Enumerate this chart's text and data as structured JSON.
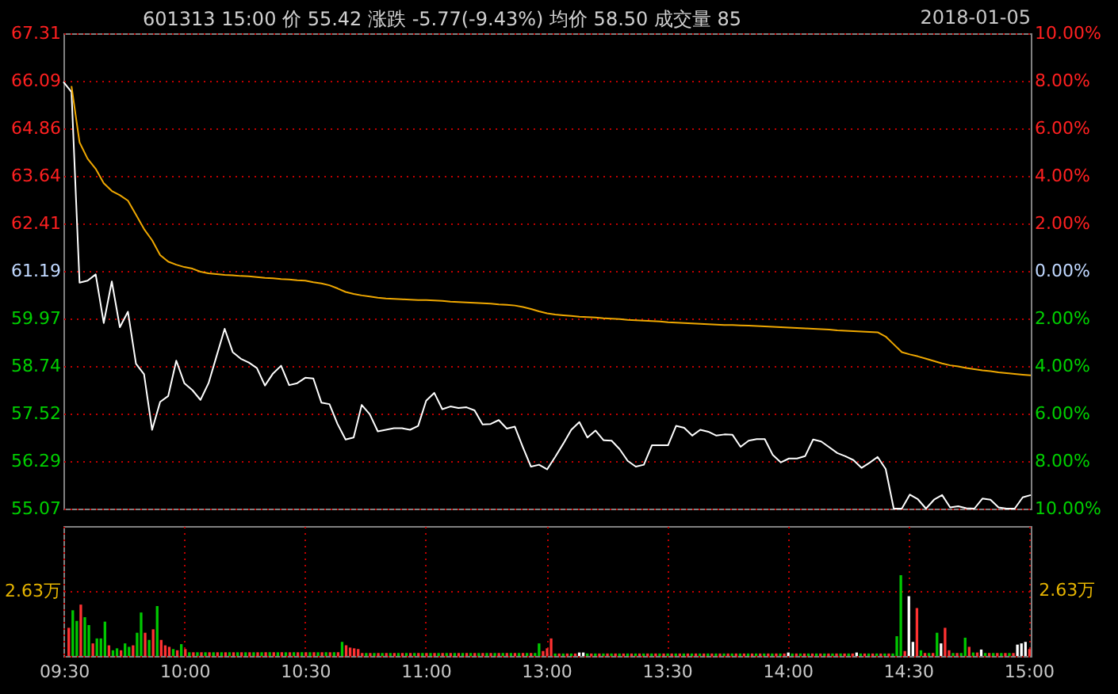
{
  "chart_data": [
    {
      "type": "line",
      "title": "601313 15:00  价 55.42  涨跌 -5.77(-9.43%)  均价 58.50  成交量 85",
      "annotations": [
        "2018-01-05"
      ],
      "categories": [
        null,
        null,
        null,
        null,
        null,
        null,
        null,
        null,
        null,
        null,
        null,
        null,
        null,
        null,
        null,
        null,
        null,
        null,
        null,
        null,
        null,
        null,
        null,
        null,
        null,
        null,
        null,
        null,
        null,
        null,
        null,
        null,
        null,
        null,
        null,
        null,
        null,
        null,
        null,
        null,
        null,
        null,
        null,
        null,
        null,
        null,
        null,
        null,
        null,
        null,
        null,
        null,
        null,
        null,
        null,
        null,
        null,
        null,
        null,
        null,
        null,
        null,
        null,
        null,
        null,
        null,
        null,
        null,
        null,
        null,
        null,
        null,
        null,
        null,
        null,
        null,
        null,
        null,
        null,
        null,
        null,
        null,
        null,
        null,
        null,
        null,
        null,
        null,
        null,
        null,
        null,
        null,
        null,
        null,
        null,
        null,
        null,
        null,
        null,
        null,
        null,
        null,
        null,
        null,
        null,
        null,
        null,
        null,
        null,
        null,
        null,
        null,
        null,
        null,
        null,
        null,
        null,
        null,
        null,
        null,
        null
      ],
      "ylim": [
        55.07,
        67.31
      ],
      "yticks": [
        55.07,
        56.29,
        57.52,
        58.74,
        59.97,
        61.19,
        62.41,
        63.64,
        64.86,
        66.09,
        67.31
      ],
      "y2lim": [
        -10,
        10
      ],
      "y2ticks": [
        {
          "value": -10,
          "label": "10.00%"
        },
        {
          "value": -8,
          "label": "8.00%"
        },
        {
          "value": -6,
          "label": "6.00%"
        },
        {
          "value": -4,
          "label": "4.00%"
        },
        {
          "value": -2,
          "label": "2.00%"
        },
        {
          "value": 0,
          "label": "0.00%"
        },
        {
          "value": 2,
          "label": "2.00%"
        },
        {
          "value": 4,
          "label": "4.00%"
        },
        {
          "value": 6,
          "label": "6.00%"
        },
        {
          "value": 8,
          "label": "8.00%"
        },
        {
          "value": 10,
          "label": "10.00%"
        }
      ],
      "grid": "y",
      "tick_labels": "y",
      "series": [
        {
          "color": "#ffffff",
          "values": [
            66.06,
            65.8,
            60.89,
            60.94,
            61.1,
            59.85,
            60.92,
            59.74,
            60.14,
            58.8,
            58.53,
            57.1,
            57.82,
            57.97,
            58.88,
            58.3,
            58.12,
            57.87,
            58.3,
            59.0,
            59.7,
            59.1,
            58.93,
            58.83,
            58.69,
            58.24,
            58.55,
            58.75,
            58.25,
            58.3,
            58.44,
            58.42,
            57.8,
            57.76,
            57.25,
            56.85,
            56.9,
            57.74,
            57.5,
            57.06,
            57.1,
            57.14,
            57.14,
            57.1,
            57.2,
            57.85,
            58.05,
            57.63,
            57.7,
            57.66,
            57.68,
            57.6,
            57.24,
            57.25,
            57.35,
            57.13,
            57.18,
            56.65,
            56.15,
            56.2,
            56.08,
            56.4,
            56.74,
            57.1,
            57.3,
            56.9,
            57.08,
            56.83,
            56.82,
            56.6,
            56.3,
            56.15,
            56.2,
            56.7,
            56.7,
            56.7,
            57.2,
            57.15,
            56.95,
            57.1,
            57.05,
            56.95,
            56.98,
            56.97,
            56.66,
            56.82,
            56.86,
            56.86,
            56.45,
            56.26,
            56.36,
            56.36,
            56.42,
            56.85,
            56.8,
            56.65,
            56.5,
            56.42,
            56.32,
            56.12,
            56.25,
            56.4,
            56.09,
            55.07,
            55.07,
            55.43,
            55.31,
            55.07,
            55.3,
            55.42,
            55.1,
            55.13,
            55.08,
            55.07,
            55.33,
            55.3,
            55.1,
            55.07,
            55.07,
            55.36,
            55.42
          ]
        },
        {
          "color": "#f0a800",
          "values": [
            null,
            65.95,
            64.5,
            64.08,
            63.82,
            63.45,
            63.25,
            63.14,
            63.0,
            62.64,
            62.27,
            61.98,
            61.6,
            61.43,
            61.35,
            61.29,
            61.25,
            61.17,
            61.13,
            61.11,
            61.09,
            61.08,
            61.06,
            61.05,
            61.03,
            61.01,
            61.0,
            60.98,
            60.97,
            60.95,
            60.94,
            60.9,
            60.87,
            60.82,
            60.74,
            60.65,
            60.6,
            60.56,
            60.53,
            60.5,
            60.48,
            60.47,
            60.46,
            60.45,
            60.44,
            60.44,
            60.43,
            60.42,
            60.4,
            60.39,
            60.38,
            60.37,
            60.36,
            60.35,
            60.33,
            60.32,
            60.3,
            60.26,
            60.21,
            60.15,
            60.1,
            60.07,
            60.05,
            60.03,
            60.01,
            60.0,
            59.99,
            59.97,
            59.96,
            59.95,
            59.93,
            59.92,
            59.91,
            59.9,
            59.89,
            59.87,
            59.86,
            59.85,
            59.84,
            59.83,
            59.82,
            59.81,
            59.8,
            59.8,
            59.79,
            59.78,
            59.77,
            59.76,
            59.75,
            59.74,
            59.73,
            59.72,
            59.71,
            59.7,
            59.69,
            59.68,
            59.66,
            59.65,
            59.64,
            59.63,
            59.62,
            59.61,
            59.5,
            59.3,
            59.1,
            59.04,
            58.99,
            58.93,
            58.87,
            58.81,
            58.76,
            58.73,
            58.69,
            58.66,
            58.63,
            58.61,
            58.58,
            58.56,
            58.54,
            58.52,
            58.5
          ]
        }
      ]
    },
    {
      "type": "bar",
      "categories": [
        "09:30",
        null,
        null,
        null,
        null,
        null,
        null,
        null,
        null,
        null,
        null,
        null,
        null,
        null,
        null,
        null,
        null,
        null,
        null,
        null,
        null,
        null,
        null,
        null,
        null,
        null,
        null,
        null,
        null,
        null,
        "10:00",
        null,
        null,
        null,
        null,
        null,
        null,
        null,
        null,
        null,
        null,
        null,
        null,
        null,
        null,
        null,
        null,
        null,
        null,
        null,
        null,
        null,
        null,
        null,
        null,
        null,
        null,
        null,
        null,
        null,
        "10:30",
        null,
        null,
        null,
        null,
        null,
        null,
        null,
        null,
        null,
        null,
        null,
        null,
        null,
        null,
        null,
        null,
        null,
        null,
        null,
        null,
        null,
        null,
        null,
        null,
        null,
        null,
        null,
        null,
        null,
        "11:00",
        null,
        null,
        null,
        null,
        null,
        null,
        null,
        null,
        null,
        null,
        null,
        null,
        null,
        null,
        null,
        null,
        null,
        null,
        null,
        null,
        null,
        null,
        null,
        null,
        null,
        null,
        null,
        null,
        null,
        "13:00",
        null,
        null,
        null,
        null,
        null,
        null,
        null,
        null,
        null,
        null,
        null,
        null,
        null,
        null,
        null,
        null,
        null,
        null,
        null,
        null,
        null,
        null,
        null,
        null,
        null,
        null,
        null,
        null,
        null,
        "13:30",
        null,
        null,
        null,
        null,
        null,
        null,
        null,
        null,
        null,
        null,
        null,
        null,
        null,
        null,
        null,
        null,
        null,
        null,
        null,
        null,
        null,
        null,
        null,
        null,
        null,
        null,
        null,
        null,
        null,
        "14:00",
        null,
        null,
        null,
        null,
        null,
        null,
        null,
        null,
        null,
        null,
        null,
        null,
        null,
        null,
        null,
        null,
        null,
        null,
        null,
        null,
        null,
        null,
        null,
        null,
        null,
        null,
        null,
        null,
        null,
        "14:30",
        null,
        null,
        null,
        null,
        null,
        null,
        null,
        null,
        null,
        null,
        null,
        null,
        null,
        null,
        null,
        null,
        null,
        null,
        null,
        null,
        null,
        null,
        null,
        null,
        null,
        null,
        null,
        null,
        null,
        "15:00"
      ],
      "ylim": [
        0,
        5.26
      ],
      "yticks": [
        {
          "value": 0,
          "label": null
        },
        {
          "value": 2.63,
          "label": "2.63万"
        }
      ],
      "annotations": [
        "2.63万"
      ],
      "grid": true,
      "values": [
        null,
        1.14,
        1.85,
        1.42,
        2.08,
        1.57,
        1.25,
        0.51,
        0.71,
        0.71,
        1.39,
        0.43,
        0.23,
        0.31,
        0.23,
        0.51,
        0.37,
        0.43,
        0.94,
        1.76,
        0.94,
        0.65,
        1.08,
        2.02,
        0.65,
        0.43,
        0.37,
        0.28,
        0.23,
        0.48,
        0.28,
        0.15,
        0.15,
        0.15,
        0.15,
        0.15,
        0.15,
        0.15,
        0.15,
        0.15,
        0.15,
        0.15,
        0.15,
        0.15,
        0.15,
        0.15,
        0.15,
        0.15,
        0.15,
        0.15,
        0.15,
        0.15,
        0.15,
        0.15,
        0.15,
        0.15,
        0.15,
        0.15,
        0.15,
        0.15,
        0.15,
        0.15,
        0.15,
        0.15,
        0.15,
        0.15,
        0.15,
        0.15,
        0.15,
        0.57,
        0.43,
        0.34,
        0.31,
        0.28,
        0.12,
        0.12,
        0.12,
        0.12,
        0.12,
        0.12,
        0.12,
        0.12,
        0.12,
        0.12,
        0.12,
        0.12,
        0.12,
        0.12,
        0.12,
        0.12,
        0.12,
        0.12,
        0.12,
        0.12,
        0.12,
        0.12,
        0.12,
        0.12,
        0.12,
        0.12,
        0.12,
        0.12,
        0.12,
        0.12,
        0.12,
        0.12,
        0.12,
        0.12,
        0.12,
        0.12,
        0.12,
        0.12,
        0.12,
        0.12,
        0.12,
        0.12,
        0.12,
        0.12,
        0.51,
        0.2,
        0.31,
        0.71,
        0.1,
        0.1,
        0.1,
        0.1,
        0.1,
        0.1,
        0.14,
        0.14,
        0.1,
        0.1,
        0.1,
        0.1,
        0.1,
        0.1,
        0.1,
        0.1,
        0.1,
        0.1,
        0.1,
        0.1,
        0.1,
        0.1,
        0.1,
        0.1,
        0.1,
        0.1,
        0.1,
        0.1,
        0.1,
        0.1,
        0.1,
        0.1,
        0.1,
        0.1,
        0.1,
        0.1,
        0.1,
        0.1,
        0.1,
        0.1,
        0.1,
        0.1,
        0.1,
        0.1,
        0.1,
        0.1,
        0.1,
        0.1,
        0.1,
        0.1,
        0.1,
        0.1,
        0.1,
        0.1,
        0.1,
        0.1,
        0.1,
        0.1,
        0.14,
        0.1,
        0.1,
        0.1,
        0.1,
        0.1,
        0.1,
        0.1,
        0.1,
        0.1,
        0.1,
        0.1,
        0.1,
        0.1,
        0.1,
        0.1,
        0.1,
        0.14,
        0.1,
        0.1,
        0.1,
        0.1,
        0.1,
        0.1,
        0.1,
        0.1,
        0.1,
        0.8,
        3.27,
        0.2,
        2.42,
        0.57,
        1.94,
        0.23,
        0.12,
        0.12,
        0.12,
        0.94,
        0.51,
        1.14,
        0.23,
        0.12,
        0.12,
        0.12,
        0.74,
        0.37,
        0.14,
        0.14,
        0.26,
        0.12,
        0.12,
        0.12,
        0.12,
        0.12,
        0.12,
        0.12,
        0.12,
        0.46,
        0.51,
        0.57,
        0.28
      ],
      "colors": [
        "#ff3232",
        "#ff3232",
        "#00c800",
        "#00c800",
        "#ff3232",
        "#00c800",
        "#00c800",
        "#ff3232",
        "#00c800",
        "#00c800",
        "#00c800",
        "#ff3232",
        "#00c800",
        "#00c800",
        "#ff3232",
        "#00c800",
        "#00c800",
        "#ff3232",
        "#00c800",
        "#00c800",
        "#ff3232",
        "#00c800",
        "#ff3232",
        "#00c800",
        "#ff3232",
        "#ff3232",
        "#ff3232",
        "#00c800",
        "#ff3232",
        "#00c800",
        "#ff3232",
        "#00c800",
        "#ff3232",
        "#00c800",
        "#ff3232",
        "#00c800",
        "#ff3232",
        "#00c800",
        "#ff3232",
        "#00c800",
        "#ff3232",
        "#00c800",
        "#ff3232",
        "#00c800",
        "#ff3232",
        "#00c800",
        "#ff3232",
        "#00c800",
        "#ff3232",
        "#00c800",
        "#ff3232",
        "#00c800",
        "#ff3232",
        "#00c800",
        "#ff3232",
        "#00c800",
        "#ff3232",
        "#00c800",
        "#ff3232",
        "#00c800",
        "#ff3232",
        "#00c800",
        "#ff3232",
        "#00c800",
        "#ff3232",
        "#00c800",
        "#ff3232",
        "#00c800",
        "#ff3232",
        "#00c800",
        "#ff3232",
        "#ff3232",
        "#ff3232",
        "#ff3232",
        "#ff3232",
        "#00c800",
        "#ff3232",
        "#00c800",
        "#ff3232",
        "#00c800",
        "#ff3232",
        "#00c800",
        "#ff3232",
        "#00c800",
        "#ff3232",
        "#00c800",
        "#ff3232",
        "#00c800",
        "#ff3232",
        "#00c800",
        "#ff3232",
        "#00c800",
        "#ff3232",
        "#00c800",
        "#ff3232",
        "#00c800",
        "#ff3232",
        "#00c800",
        "#ff3232",
        "#00c800",
        "#ff3232",
        "#00c800",
        "#ff3232",
        "#00c800",
        "#ff3232",
        "#00c800",
        "#ff3232",
        "#00c800",
        "#ff3232",
        "#00c800",
        "#ff3232",
        "#00c800",
        "#ff3232",
        "#00c800",
        "#ff3232",
        "#00c800",
        "#ff3232",
        "#00c800",
        "#00c800",
        "#ff3232",
        "#ff3232",
        "#ff3232",
        "#00c800",
        "#ff3232",
        "#00c800",
        "#ff3232",
        "#00c800",
        "#ff3232",
        "#ffffff",
        "#ffffff",
        "#00c800",
        "#ff3232",
        "#00c800",
        "#ff3232",
        "#00c800",
        "#ff3232",
        "#00c800",
        "#ff3232",
        "#00c800",
        "#ff3232",
        "#00c800",
        "#ff3232",
        "#00c800",
        "#ff3232",
        "#00c800",
        "#ff3232",
        "#00c800",
        "#ff3232",
        "#00c800",
        "#ff3232",
        "#00c800",
        "#ff3232",
        "#00c800",
        "#ff3232",
        "#00c800",
        "#ff3232",
        "#00c800",
        "#ff3232",
        "#00c800",
        "#ff3232",
        "#00c800",
        "#ff3232",
        "#00c800",
        "#ff3232",
        "#00c800",
        "#ff3232",
        "#00c800",
        "#ff3232",
        "#00c800",
        "#ff3232",
        "#00c800",
        "#ff3232",
        "#00c800",
        "#ff3232",
        "#00c800",
        "#ff3232",
        "#00c800",
        "#ff3232",
        "#00c800",
        "#ff3232",
        "#ffffff",
        "#00c800",
        "#ff3232",
        "#00c800",
        "#ff3232",
        "#00c800",
        "#ff3232",
        "#00c800",
        "#ff3232",
        "#00c800",
        "#ff3232",
        "#00c800",
        "#ff3232",
        "#00c800",
        "#ff3232",
        "#00c800",
        "#ff3232",
        "#ffffff",
        "#00c800",
        "#ff3232",
        "#00c800",
        "#ff3232",
        "#00c800",
        "#ff3232",
        "#00c800",
        "#ff3232",
        "#00c800",
        "#00c800",
        "#00c800",
        "#ff3232",
        "#ffffff",
        "#ffffff",
        "#ff3232",
        "#00c800",
        "#ff3232",
        "#00c800",
        "#ff3232",
        "#00c800",
        "#ffffff",
        "#ff3232",
        "#ff3232",
        "#00c800",
        "#ff3232",
        "#00c800",
        "#00c800",
        "#ff3232",
        "#00c800",
        "#ff3232",
        "#ffffff",
        "#00c800",
        "#ff3232",
        "#00c800",
        "#ff3232",
        "#00c800",
        "#ff3232",
        "#00c800",
        "#ff3232",
        "#ffffff",
        "#ffffff",
        "#ffffff",
        "#ff3232"
      ]
    }
  ]
}
